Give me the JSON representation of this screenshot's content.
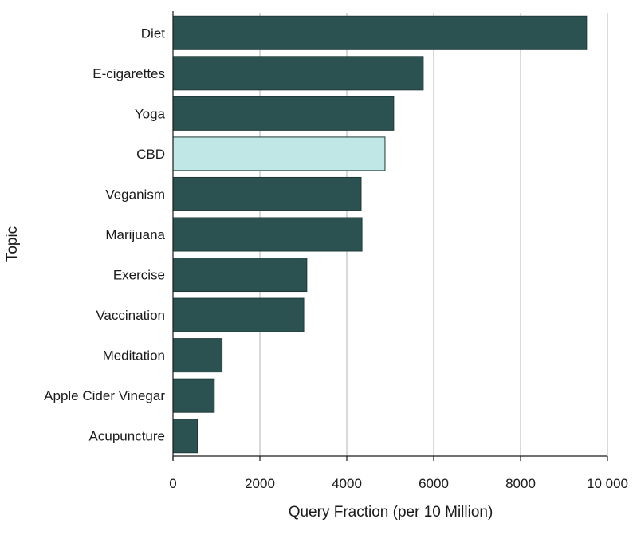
{
  "chart_data": {
    "type": "bar",
    "orientation": "horizontal",
    "categories": [
      "Diet",
      "E-cigarettes",
      "Yoga",
      "CBD",
      "Veganism",
      "Marijuana",
      "Exercise",
      "Vaccination",
      "Meditation",
      "Apple Cider Vinegar",
      "Acupuncture"
    ],
    "values": [
      9520,
      5760,
      5080,
      4880,
      4330,
      4350,
      3080,
      3010,
      1130,
      950,
      560
    ],
    "highlight": "CBD",
    "xlabel": "Query Fraction (per 10 Million)",
    "ylabel": "Topic",
    "xlim": [
      0,
      10000
    ],
    "xticks": [
      0,
      2000,
      4000,
      6000,
      8000,
      10000
    ],
    "xtick_labels": [
      "0",
      "2000",
      "4000",
      "6000",
      "8000",
      "10 000"
    ],
    "grid": "vertical",
    "colors": {
      "bar": "#2b5150",
      "highlight": "#c0e6e5",
      "grid": "#d9d9d9"
    }
  }
}
